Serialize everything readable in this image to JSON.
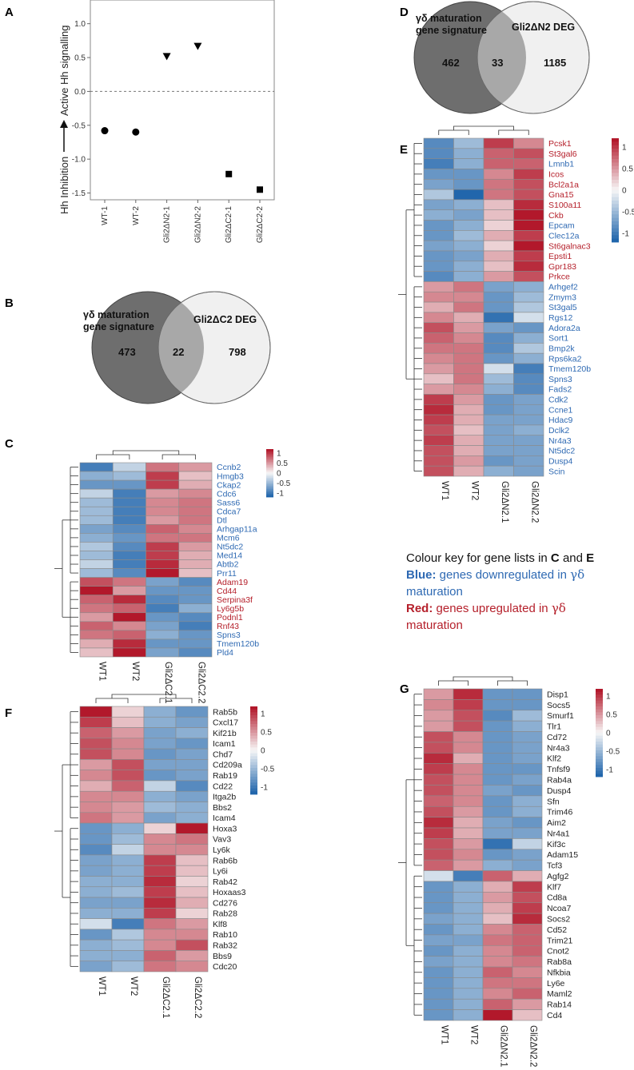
{
  "colors": {
    "blue_text": "#2f6ab3",
    "red_text": "#b5202b",
    "black_text": "#222222",
    "heat_low": "#2166ac",
    "heat_mid": "#f7f7f7",
    "heat_high": "#b2182b",
    "venn_dark": "#6e6e6e",
    "venn_overlap": "#a8a8a8",
    "venn_light": "#f0f0f0"
  },
  "color_scale_ticks": [
    "1",
    "0.5",
    "0",
    "-0.5",
    "-1"
  ],
  "panel_labels": [
    "A",
    "B",
    "C",
    "D",
    "E",
    "F",
    "G"
  ],
  "panelA": {
    "label": "A",
    "ylabel_top": "Active Hh signalling",
    "ylabel_bottom": "Hh Inhibition",
    "arrow_icon": "up-arrow-icon"
  },
  "panelB": {
    "label": "B",
    "left_title": [
      "γδ maturation",
      "gene signature"
    ],
    "right_title": "Gli2ΔC2 DEG",
    "left_only": "473",
    "overlap": "22",
    "right_only": "798"
  },
  "panelD": {
    "label": "D",
    "left_title": [
      "γδ maturation",
      "gene signature"
    ],
    "right_title": "Gli2ΔN2 DEG",
    "left_only": "462",
    "overlap": "33",
    "right_only": "1185"
  },
  "colour_key": {
    "title_prefix": "Colour key for gene lists in",
    "panel_c": "C",
    "and": "and",
    "panel_e": "E",
    "blue_label": "Blue:",
    "blue_text_pre": "genes downregulated in",
    "blue_text_post": "maturation",
    "red_label": "Red:",
    "red_text_pre": "genes upregulated in",
    "red_text_post": "maturation",
    "gamma_delta": "γδ"
  },
  "chart_data": [
    {
      "panel": "A",
      "type": "scatter",
      "title": "",
      "xlabel": "",
      "ylabel": "Active Hh signalling / Hh Inhibition",
      "ylim": [
        -1.6,
        1.35
      ],
      "yticks": [
        -1.5,
        -1.0,
        -0.5,
        0.0,
        0.5,
        1.0
      ],
      "reference_line": 0.0,
      "categories": [
        "WT-1",
        "WT-2",
        "Gli2ΔN2-1",
        "Gli2ΔN2-2",
        "Gli2ΔC2-1",
        "Gli2ΔC2-2"
      ],
      "points": [
        {
          "x": "WT-1",
          "y": -0.58,
          "marker": "circle"
        },
        {
          "x": "WT-2",
          "y": -0.6,
          "marker": "circle"
        },
        {
          "x": "Gli2ΔN2-1",
          "y": 0.52,
          "marker": "triangle-down"
        },
        {
          "x": "Gli2ΔN2-2",
          "y": 0.67,
          "marker": "triangle-down"
        },
        {
          "x": "Gli2ΔC2-1",
          "y": -1.22,
          "marker": "square"
        },
        {
          "x": "Gli2ΔC2-2",
          "y": -1.45,
          "marker": "square"
        }
      ]
    },
    {
      "panel": "C",
      "type": "heatmap",
      "columns": [
        "WT1",
        "WT2",
        "Gli2ΔC2.1",
        "Gli2ΔC2.2"
      ],
      "genes": [
        "Ccnb2",
        "Hmgb3",
        "Ckap2",
        "Cdc6",
        "Sass6",
        "Cdca7",
        "Dtl",
        "Arhgap11a",
        "Mcm6",
        "Nt5dc2",
        "Med14",
        "Abtb2",
        "Prr11",
        "Adam19",
        "Cd44",
        "Serpina3f",
        "Ly6g5b",
        "Podnl1",
        "Rnf43",
        "Spns3",
        "Tmem120b",
        "Pld4"
      ],
      "gene_colors": [
        "b",
        "b",
        "b",
        "b",
        "b",
        "b",
        "b",
        "b",
        "b",
        "b",
        "b",
        "b",
        "b",
        "r",
        "r",
        "r",
        "r",
        "r",
        "r",
        "b",
        "b",
        "b"
      ],
      "values": [
        [
          -1,
          -0.3,
          0.7,
          0.5
        ],
        [
          -0.6,
          -0.5,
          1,
          0.3
        ],
        [
          -0.8,
          -0.8,
          1,
          0.4
        ],
        [
          -0.3,
          -1,
          0.5,
          0.6
        ],
        [
          -0.5,
          -1,
          0.6,
          0.7
        ],
        [
          -0.5,
          -1,
          0.6,
          0.7
        ],
        [
          -0.5,
          -1,
          0.5,
          0.7
        ],
        [
          -0.7,
          -0.9,
          0.8,
          0.6
        ],
        [
          -0.6,
          -0.8,
          0.7,
          0.7
        ],
        [
          -0.4,
          -0.9,
          1,
          0.5
        ],
        [
          -0.5,
          -1,
          1,
          0.4
        ],
        [
          -0.3,
          -1,
          1.1,
          0.4
        ],
        [
          -0.5,
          -0.9,
          1.2,
          0.3
        ],
        [
          0.9,
          0.7,
          -0.7,
          -0.9
        ],
        [
          1.2,
          0.5,
          -0.8,
          -0.8
        ],
        [
          0.8,
          1.1,
          -0.9,
          -0.8
        ],
        [
          0.7,
          0.8,
          -1,
          -0.6
        ],
        [
          0.5,
          1.2,
          -0.8,
          -0.9
        ],
        [
          0.8,
          0.6,
          -0.7,
          -1
        ],
        [
          0.7,
          0.8,
          -0.6,
          -0.8
        ],
        [
          0.4,
          1.1,
          -0.8,
          -0.8
        ],
        [
          0.3,
          1.2,
          -0.7,
          -0.9
        ]
      ]
    },
    {
      "panel": "E",
      "type": "heatmap",
      "columns": [
        "WT1",
        "WT2",
        "Gli2ΔN2.1",
        "Gli2ΔN2.2"
      ],
      "genes": [
        "Pcsk1",
        "St3gal6",
        "Lmnb1",
        "Icos",
        "Bcl2a1a",
        "Gna15",
        "S100a11",
        "Ckb",
        "Epcam",
        "Clec12a",
        "St6galnac3",
        "Epsti1",
        "Gpr183",
        "Prkce",
        "Arhgef2",
        "Zmym3",
        "St3gal5",
        "Rgs12",
        "Adora2a",
        "Sort1",
        "Bmp2k",
        "Rps6ka2",
        "Tmem120b",
        "Spns3",
        "Fads2",
        "Cdk2",
        "Ccne1",
        "Hdac9",
        "Dclk2",
        "Nr4a3",
        "Nt5dc2",
        "Dusp4",
        "Scin"
      ],
      "gene_colors": [
        "r",
        "r",
        "b",
        "r",
        "r",
        "r",
        "r",
        "r",
        "b",
        "b",
        "r",
        "r",
        "r",
        "r",
        "b",
        "b",
        "b",
        "b",
        "b",
        "b",
        "b",
        "b",
        "b",
        "b",
        "b",
        "b",
        "b",
        "b",
        "b",
        "b",
        "b",
        "b",
        "b"
      ],
      "values": [
        [
          -0.9,
          -0.5,
          1,
          0.6
        ],
        [
          -0.9,
          -0.6,
          0.8,
          0.9
        ],
        [
          -1,
          -0.6,
          0.8,
          0.8
        ],
        [
          -0.8,
          -0.8,
          0.6,
          1
        ],
        [
          -0.7,
          -0.8,
          0.7,
          0.9
        ],
        [
          -0.4,
          -1.2,
          0.7,
          0.9
        ],
        [
          -0.7,
          -0.6,
          0.3,
          1.1
        ],
        [
          -0.6,
          -0.7,
          0.3,
          1.2
        ],
        [
          -0.8,
          -0.6,
          0.2,
          1.2
        ],
        [
          -0.8,
          -0.5,
          0.4,
          1
        ],
        [
          -0.7,
          -0.6,
          0.2,
          1.2
        ],
        [
          -0.8,
          -0.7,
          0.4,
          1
        ],
        [
          -0.8,
          -0.6,
          0.3,
          1.1
        ],
        [
          -0.9,
          -0.6,
          0.5,
          0.9
        ],
        [
          0.5,
          0.7,
          -0.7,
          -0.6
        ],
        [
          0.6,
          0.6,
          -0.8,
          -0.5
        ],
        [
          0.4,
          0.7,
          -0.8,
          -0.4
        ],
        [
          0.6,
          0.4,
          -1.1,
          -0.2
        ],
        [
          0.9,
          0.5,
          -0.7,
          -0.8
        ],
        [
          0.8,
          0.6,
          -0.9,
          -0.6
        ],
        [
          0.7,
          0.7,
          -0.9,
          -0.4
        ],
        [
          0.6,
          0.7,
          -0.8,
          -0.6
        ],
        [
          0.5,
          0.7,
          -0.2,
          -1
        ],
        [
          0.3,
          0.7,
          -0.5,
          -0.9
        ],
        [
          0.5,
          0.6,
          -0.6,
          -0.9
        ],
        [
          1,
          0.5,
          -0.8,
          -0.7
        ],
        [
          1.1,
          0.4,
          -0.8,
          -0.7
        ],
        [
          1,
          0.4,
          -0.7,
          -0.7
        ],
        [
          0.9,
          0.3,
          -0.7,
          -0.6
        ],
        [
          1,
          0.4,
          -0.7,
          -0.7
        ],
        [
          0.9,
          0.4,
          -0.7,
          -0.7
        ],
        [
          0.9,
          0.5,
          -0.8,
          -0.7
        ],
        [
          0.9,
          0.4,
          -0.6,
          -0.7
        ]
      ]
    },
    {
      "panel": "F",
      "type": "heatmap",
      "columns": [
        "WT1",
        "WT2",
        "Gli2ΔC2.1",
        "Gli2ΔC2.2"
      ],
      "genes": [
        "Rab5b",
        "Cxcl17",
        "Kif21b",
        "Icam1",
        "Chd7",
        "Cd209a",
        "Rab19",
        "Cd22",
        "Itga2b",
        "Bbs2",
        "Icam4",
        "Hoxa3",
        "Vav3",
        "Ly6k",
        "Rab6b",
        "Ly6i",
        "Rab42",
        "Hoxaas3",
        "Cd276",
        "Rab28",
        "Klf8",
        "Rab10",
        "Rab32",
        "Bbs9",
        "Cdc20"
      ],
      "gene_colors": [
        "k",
        "k",
        "k",
        "k",
        "k",
        "k",
        "k",
        "k",
        "k",
        "k",
        "k",
        "k",
        "k",
        "k",
        "k",
        "k",
        "k",
        "k",
        "k",
        "k",
        "k",
        "k",
        "k",
        "k",
        "k"
      ],
      "values": [
        [
          1.2,
          0.2,
          -0.6,
          -0.8
        ],
        [
          1,
          0.3,
          -0.6,
          -0.7
        ],
        [
          0.8,
          0.5,
          -0.7,
          -0.6
        ],
        [
          0.9,
          0.6,
          -0.7,
          -0.8
        ],
        [
          0.9,
          0.6,
          -0.8,
          -0.7
        ],
        [
          0.5,
          0.9,
          -0.7,
          -0.7
        ],
        [
          0.6,
          0.9,
          -0.8,
          -0.7
        ],
        [
          0.4,
          0.8,
          -0.3,
          -0.9
        ],
        [
          0.6,
          0.6,
          -0.6,
          -0.7
        ],
        [
          0.6,
          0.5,
          -0.5,
          -0.6
        ],
        [
          0.7,
          0.5,
          -0.7,
          -0.6
        ],
        [
          -0.8,
          -0.6,
          0.2,
          1.2
        ],
        [
          -0.8,
          -0.5,
          0.6,
          0.7
        ],
        [
          -0.9,
          -0.3,
          0.6,
          0.6
        ],
        [
          -0.7,
          -0.6,
          1,
          0.3
        ],
        [
          -0.7,
          -0.6,
          1,
          0.3
        ],
        [
          -0.6,
          -0.6,
          1.1,
          0.2
        ],
        [
          -0.6,
          -0.5,
          1,
          0.3
        ],
        [
          -0.7,
          -0.7,
          1.1,
          0.4
        ],
        [
          -0.6,
          -0.6,
          1,
          0.2
        ],
        [
          -0.2,
          -1,
          0.7,
          0.5
        ],
        [
          -0.8,
          -0.4,
          0.6,
          0.6
        ],
        [
          -0.6,
          -0.5,
          0.6,
          0.9
        ],
        [
          -0.6,
          -0.6,
          0.8,
          0.5
        ],
        [
          -0.7,
          -0.5,
          0.7,
          0.6
        ]
      ]
    },
    {
      "panel": "G",
      "type": "heatmap",
      "columns": [
        "WT1",
        "WT2",
        "Gli2ΔN2.1",
        "Gli2ΔN2.2"
      ],
      "genes": [
        "Disp1",
        "Socs5",
        "Smurf1",
        "Tlr1",
        "Cd72",
        "Nr4a3",
        "Klf2",
        "Tnfsf9",
        "Rab4a",
        "Dusp4",
        "Sfn",
        "Trim46",
        "Aim2",
        "Nr4a1",
        "Kif3c",
        "Adam15",
        "Tcf3",
        "Agfg2",
        "Klf7",
        "Cd8a",
        "Ncoa7",
        "Socs2",
        "Cd52",
        "Trim21",
        "Cnot2",
        "Rab8a",
        "Nfkbia",
        "Ly6e",
        "Maml2",
        "Rab14",
        "Cd4"
      ],
      "gene_colors": [
        "k",
        "k",
        "k",
        "k",
        "k",
        "k",
        "k",
        "k",
        "k",
        "k",
        "k",
        "k",
        "k",
        "k",
        "k",
        "k",
        "k",
        "k",
        "k",
        "k",
        "k",
        "k",
        "k",
        "k",
        "k",
        "k",
        "k",
        "k",
        "k",
        "k",
        "k"
      ],
      "values": [
        [
          0.5,
          1.1,
          -0.8,
          -0.8
        ],
        [
          0.6,
          1,
          -0.8,
          -0.8
        ],
        [
          0.5,
          0.9,
          -0.9,
          -0.5
        ],
        [
          0.5,
          0.9,
          -0.8,
          -0.6
        ],
        [
          0.9,
          0.6,
          -0.8,
          -0.7
        ],
        [
          0.9,
          0.6,
          -0.8,
          -0.7
        ],
        [
          1.1,
          0.4,
          -0.8,
          -0.7
        ],
        [
          1,
          0.6,
          -0.8,
          -0.8
        ],
        [
          0.9,
          0.6,
          -0.8,
          -0.7
        ],
        [
          0.9,
          0.6,
          -0.7,
          -0.8
        ],
        [
          0.8,
          0.6,
          -0.8,
          -0.6
        ],
        [
          0.9,
          0.5,
          -0.8,
          -0.6
        ],
        [
          1.1,
          0.4,
          -0.7,
          -0.8
        ],
        [
          1,
          0.4,
          -0.7,
          -0.7
        ],
        [
          0.9,
          0.5,
          -1.1,
          -0.3
        ],
        [
          0.9,
          0.6,
          -0.8,
          -0.7
        ],
        [
          0.8,
          0.5,
          -0.6,
          -0.7
        ],
        [
          -0.2,
          -1,
          0.8,
          0.4
        ],
        [
          -0.8,
          -0.6,
          0.4,
          1
        ],
        [
          -0.8,
          -0.6,
          0.5,
          0.9
        ],
        [
          -0.8,
          -0.6,
          0.4,
          1
        ],
        [
          -0.7,
          -0.6,
          0.3,
          1.1
        ],
        [
          -0.8,
          -0.6,
          0.6,
          0.8
        ],
        [
          -0.7,
          -0.7,
          0.7,
          0.8
        ],
        [
          -0.8,
          -0.6,
          0.6,
          0.8
        ],
        [
          -0.7,
          -0.6,
          0.6,
          0.7
        ],
        [
          -0.8,
          -0.6,
          0.8,
          0.6
        ],
        [
          -0.8,
          -0.6,
          0.7,
          0.7
        ],
        [
          -0.8,
          -0.6,
          0.6,
          0.8
        ],
        [
          -0.8,
          -0.6,
          0.8,
          0.5
        ],
        [
          -0.8,
          -0.6,
          1.2,
          0.3
        ]
      ]
    }
  ]
}
